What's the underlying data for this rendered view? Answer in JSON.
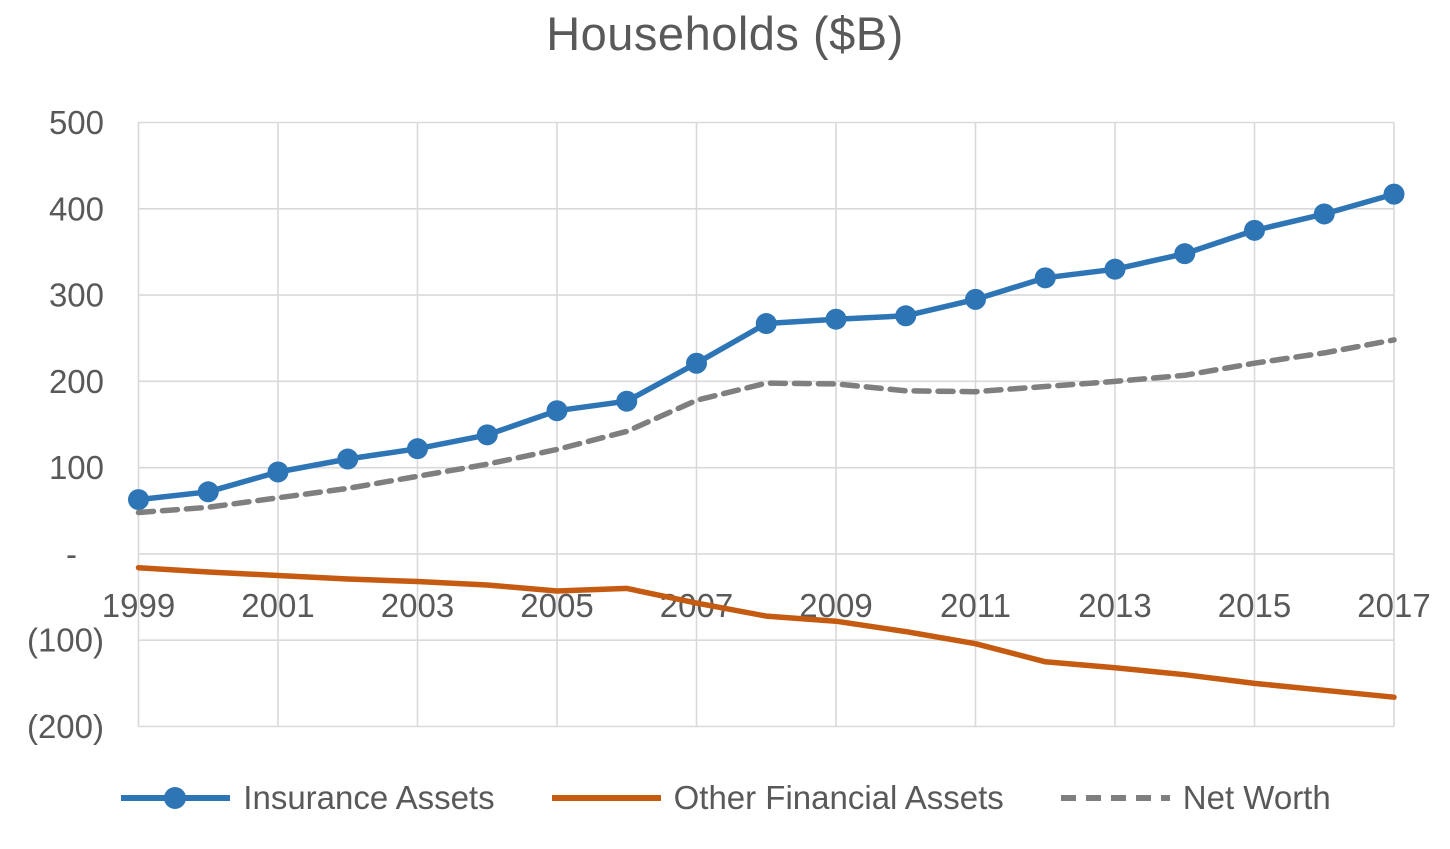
{
  "chart_data": {
    "type": "line",
    "title": "Households ($B)",
    "xlabel": "",
    "ylabel": "",
    "xlim": [
      1999,
      2017
    ],
    "ylim": [
      -200,
      500
    ],
    "grid": true,
    "legend_position": "bottom",
    "x": [
      1999,
      2000,
      2001,
      2002,
      2003,
      2004,
      2005,
      2006,
      2007,
      2008,
      2009,
      2010,
      2011,
      2012,
      2013,
      2014,
      2015,
      2016,
      2017
    ],
    "x_ticks": [
      1999,
      2001,
      2003,
      2005,
      2007,
      2009,
      2011,
      2013,
      2015,
      2017
    ],
    "y_ticks": [
      {
        "value": 500,
        "label": "500"
      },
      {
        "value": 400,
        "label": "400"
      },
      {
        "value": 300,
        "label": "300"
      },
      {
        "value": 200,
        "label": "200"
      },
      {
        "value": 100,
        "label": "100"
      },
      {
        "value": 0,
        "label": "-"
      },
      {
        "value": -100,
        "label": "(100)"
      },
      {
        "value": -200,
        "label": "(200)"
      }
    ],
    "series": [
      {
        "name": "Insurance Assets",
        "color": "#2E75B6",
        "line_style": "solid",
        "marker": "circle",
        "values": [
          63,
          72,
          95,
          110,
          122,
          138,
          166,
          177,
          221,
          267,
          272,
          276,
          295,
          320,
          330,
          348,
          375,
          394,
          417
        ]
      },
      {
        "name": "Other Financial Assets",
        "color": "#C55A11",
        "line_style": "solid",
        "marker": "none",
        "values": [
          -16,
          -21,
          -25,
          -29,
          -32,
          -36,
          -43,
          -40,
          -57,
          -72,
          -78,
          -90,
          -104,
          -125,
          -132,
          -140,
          -150,
          -158,
          -166
        ]
      },
      {
        "name": "Net Worth",
        "color": "#7F7F7F",
        "line_style": "dashed",
        "marker": "none",
        "values": [
          48,
          54,
          65,
          76,
          90,
          104,
          121,
          142,
          178,
          198,
          197,
          189,
          188,
          194,
          200,
          207,
          221,
          233,
          248
        ]
      }
    ],
    "colors": {
      "text": "#595959",
      "gridline": "#D9D9D9",
      "background": "#FFFFFF"
    }
  }
}
